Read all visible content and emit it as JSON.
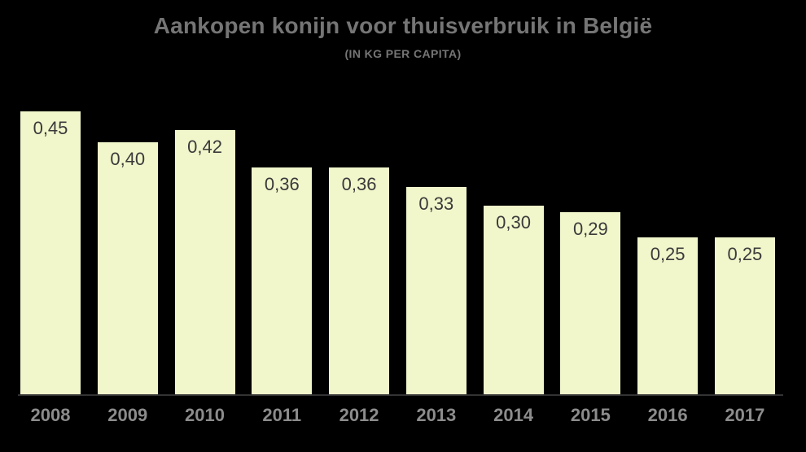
{
  "chart_data": {
    "type": "bar",
    "title": "Aankopen konijn voor thuisverbruik in België",
    "subtitle": "(IN KG PER CAPITA)",
    "categories": [
      "2008",
      "2009",
      "2010",
      "2011",
      "2012",
      "2013",
      "2014",
      "2015",
      "2016",
      "2017"
    ],
    "values": [
      0.45,
      0.4,
      0.42,
      0.36,
      0.36,
      0.33,
      0.3,
      0.29,
      0.25,
      0.25
    ],
    "value_labels": [
      "0,45",
      "0,40",
      "0,42",
      "0,36",
      "0,36",
      "0,33",
      "0,30",
      "0,29",
      "0,25",
      "0,25"
    ],
    "xlabel": "",
    "ylabel": "",
    "ylim": [
      0,
      0.5
    ],
    "grid": "off",
    "legend": "none",
    "y_axis_visible": false,
    "x_axis_line": "visible"
  },
  "colors": {
    "background": "#000000",
    "bar_fill": "#f1f6cb",
    "title_text": "#757575",
    "tick_text": "#8c8c8c",
    "value_text": "#3a3a3a",
    "axis_line": "#333333"
  }
}
